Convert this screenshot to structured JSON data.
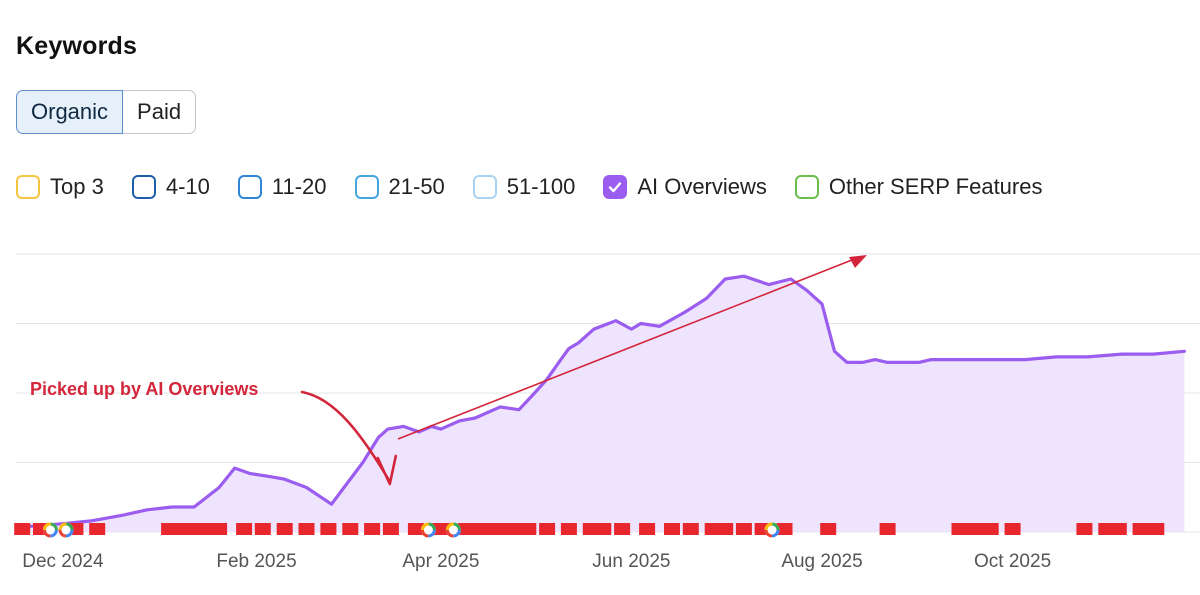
{
  "title": "Keywords",
  "toggle": {
    "options": [
      "Organic",
      "Paid"
    ],
    "selected": "Organic"
  },
  "legend": [
    {
      "label": "Top 3",
      "color": "#f5c542",
      "checked": false
    },
    {
      "label": "4-10",
      "color": "#1f5fa8",
      "checked": false
    },
    {
      "label": "11-20",
      "color": "#2f86d6",
      "checked": false
    },
    {
      "label": "21-50",
      "color": "#44a7e0",
      "checked": false
    },
    {
      "label": "51-100",
      "color": "#a8d4f2",
      "checked": false
    },
    {
      "label": "AI Overviews",
      "color": "#9b5cf0",
      "checked": true
    },
    {
      "label": "Other SERP Features",
      "color": "#6abf4b",
      "checked": false
    }
  ],
  "chart_data": {
    "type": "area",
    "series": [
      {
        "color": "#9b5cf0",
        "fill": "#efe4fd",
        "x": [
          "2024-11-20",
          "2024-12-01",
          "2024-12-10",
          "2024-12-20",
          "2024-12-28",
          "2025-01-05",
          "2025-01-12",
          "2025-01-20",
          "2025-01-25",
          "2025-01-30",
          "2025-02-05",
          "2025-02-10",
          "2025-02-17",
          "2025-02-25",
          "2025-03-01",
          "2025-03-07",
          "2025-03-12",
          "2025-03-15",
          "2025-03-20",
          "2025-03-25",
          "2025-03-29",
          "2025-04-01",
          "2025-04-07",
          "2025-04-12",
          "2025-04-20",
          "2025-04-26",
          "2025-05-01",
          "2025-05-05",
          "2025-05-10",
          "2025-05-12",
          "2025-05-15",
          "2025-05-20",
          "2025-05-27",
          "2025-06-01",
          "2025-06-04",
          "2025-06-10",
          "2025-06-18",
          "2025-06-25",
          "2025-07-01",
          "2025-07-07",
          "2025-07-15",
          "2025-07-22",
          "2025-07-27",
          "2025-08-01",
          "2025-08-05",
          "2025-08-09",
          "2025-08-14",
          "2025-08-18",
          "2025-08-22",
          "2025-08-27",
          "2025-09-01",
          "2025-09-05",
          "2025-09-15",
          "2025-09-25",
          "2025-10-05",
          "2025-10-15",
          "2025-10-25",
          "2025-11-05",
          "2025-11-15",
          "2025-11-25"
        ],
        "y": [
          0.02,
          0.03,
          0.04,
          0.06,
          0.08,
          0.09,
          0.09,
          0.16,
          0.23,
          0.21,
          0.2,
          0.19,
          0.16,
          0.1,
          0.16,
          0.25,
          0.34,
          0.37,
          0.38,
          0.36,
          0.38,
          0.37,
          0.4,
          0.41,
          0.45,
          0.44,
          0.5,
          0.55,
          0.63,
          0.66,
          0.68,
          0.73,
          0.76,
          0.73,
          0.75,
          0.74,
          0.79,
          0.84,
          0.91,
          0.92,
          0.89,
          0.91,
          0.87,
          0.82,
          0.65,
          0.61,
          0.61,
          0.62,
          0.61,
          0.61,
          0.61,
          0.62,
          0.62,
          0.62,
          0.62,
          0.63,
          0.63,
          0.64,
          0.64,
          0.65
        ]
      }
    ],
    "x_ticks": [
      {
        "label": "Dec 2024",
        "date": "2024-12-01"
      },
      {
        "label": "Feb 2025",
        "date": "2025-02-01"
      },
      {
        "label": "Apr 2025",
        "date": "2025-04-01"
      },
      {
        "label": "Jun 2025",
        "date": "2025-06-01"
      },
      {
        "label": "Aug 2025",
        "date": "2025-08-01"
      },
      {
        "label": "Oct 2025",
        "date": "2025-10-01"
      }
    ],
    "xlim": [
      "2024-11-16",
      "2025-11-30"
    ],
    "ylim": [
      0,
      1
    ],
    "gridlines": 4,
    "annotations": [
      {
        "text": "Picked up by AI Overviews",
        "target_date": "2025-03-15"
      }
    ],
    "event_markers": {
      "flag_color": "#e8262d",
      "flag_dates": [
        "2024-11-18",
        "2024-11-24",
        "2024-12-05",
        "2024-12-12",
        "2025-01-04",
        "2025-01-08",
        "2025-01-12",
        "2025-01-16",
        "2025-01-20",
        "2025-01-28",
        "2025-02-03",
        "2025-02-10",
        "2025-02-17",
        "2025-02-24",
        "2025-03-03",
        "2025-03-10",
        "2025-03-16",
        "2025-03-24",
        "2025-03-30",
        "2025-04-03",
        "2025-04-09",
        "2025-04-13",
        "2025-04-17",
        "2025-04-20",
        "2025-04-24",
        "2025-04-29",
        "2025-05-05",
        "2025-05-12",
        "2025-05-19",
        "2025-05-23",
        "2025-05-29",
        "2025-06-06",
        "2025-06-14",
        "2025-06-20",
        "2025-06-27",
        "2025-07-01",
        "2025-07-07",
        "2025-07-13",
        "2025-07-20",
        "2025-08-03",
        "2025-08-22",
        "2025-09-14",
        "2025-09-19",
        "2025-09-24",
        "2025-10-01",
        "2025-10-24",
        "2025-10-31",
        "2025-11-04",
        "2025-11-11",
        "2025-11-16"
      ],
      "google_dates": [
        "2024-11-27",
        "2024-12-02",
        "2025-03-28",
        "2025-04-05",
        "2025-07-16"
      ]
    }
  }
}
